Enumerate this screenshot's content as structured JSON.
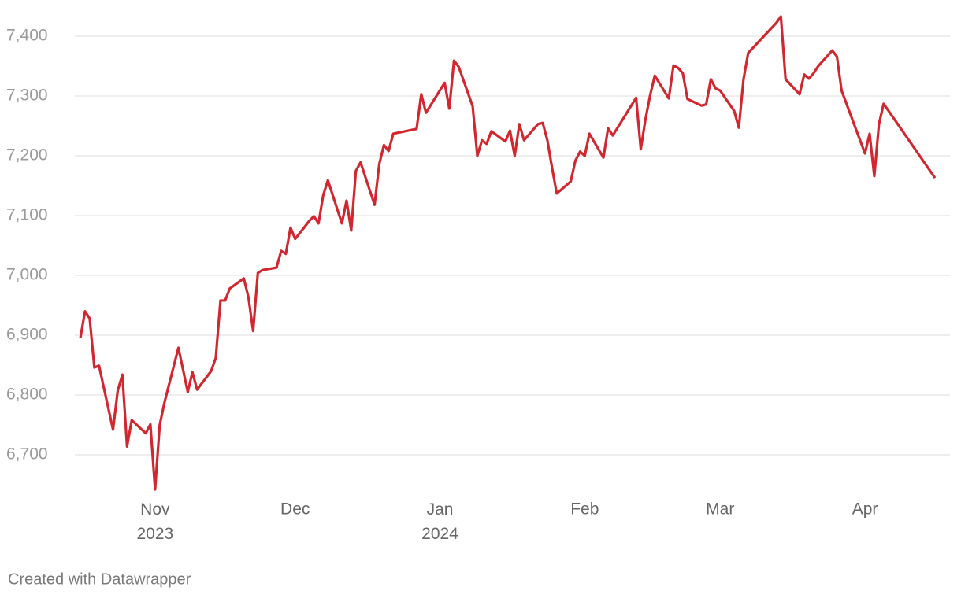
{
  "chart_data": {
    "type": "line",
    "x": [
      0,
      1,
      2,
      3,
      4,
      7,
      8,
      9,
      10,
      11,
      14,
      15,
      16,
      17,
      18,
      21,
      23,
      24,
      25,
      28,
      29,
      30,
      31,
      32,
      35,
      36,
      37,
      38,
      39,
      42,
      43,
      44,
      45,
      46,
      49,
      50,
      51,
      52,
      53,
      56,
      57,
      58,
      59,
      60,
      63,
      64,
      65,
      66,
      67,
      72,
      73,
      74,
      78,
      79,
      80,
      81,
      84,
      85,
      86,
      87,
      88,
      91,
      92,
      93,
      94,
      95,
      98,
      99,
      100,
      101,
      102,
      105,
      106,
      107,
      108,
      109,
      112,
      113,
      114,
      119,
      120,
      121,
      122,
      123,
      126,
      127,
      128,
      129,
      130,
      133,
      134,
      135,
      136,
      137,
      140,
      141,
      142,
      143,
      149,
      150,
      151,
      154,
      155,
      156,
      157,
      158,
      161,
      162,
      163,
      168,
      169,
      170,
      171,
      172,
      183
    ],
    "series": [
      {
        "color": "#d0282e",
        "values": [
          6895,
          6940,
          6928,
          6846,
          6849,
          6742,
          6807,
          6834,
          6714,
          6758,
          6736,
          6751,
          6642,
          6750,
          6787,
          6879,
          6805,
          6838,
          6809,
          6840,
          6862,
          6958,
          6958,
          6978,
          6995,
          6963,
          6907,
          7004,
          7009,
          7013,
          7041,
          7036,
          7080,
          7061,
          7091,
          7099,
          7087,
          7134,
          7159,
          7087,
          7125,
          7075,
          7175,
          7189,
          7118,
          7186,
          7218,
          7208,
          7237,
          7245,
          7303,
          7272,
          7322,
          7279,
          7359,
          7349,
          7283,
          7200,
          7226,
          7220,
          7241,
          7224,
          7242,
          7200,
          7253,
          7226,
          7253,
          7255,
          7226,
          7180,
          7137,
          7157,
          7192,
          7207,
          7200,
          7237,
          7197,
          7246,
          7234,
          7297,
          7211,
          7261,
          7301,
          7334,
          7296,
          7351,
          7347,
          7338,
          7295,
          7284,
          7286,
          7328,
          7313,
          7309,
          7275,
          7247,
          7328,
          7372,
          7422,
          7433,
          7328,
          7303,
          7336,
          7329,
          7338,
          7350,
          7376,
          7366,
          7309,
          7204,
          7237,
          7166,
          7253,
          7287,
          7163
        ]
      }
    ],
    "xlim": [
      0,
      183
    ],
    "xticks": [
      {
        "value": 16,
        "label": "Nov\n2023"
      },
      {
        "value": 46,
        "label": "Dec"
      },
      {
        "value": 77,
        "label": "Jan\n2024"
      },
      {
        "value": 108,
        "label": "Feb"
      },
      {
        "value": 137,
        "label": "Mar"
      },
      {
        "value": 168,
        "label": "Apr"
      }
    ],
    "ylim": [
      6640,
      7435
    ],
    "yticks": [
      {
        "value": 6700,
        "label": "6,700"
      },
      {
        "value": 6800,
        "label": "6,800"
      },
      {
        "value": 6900,
        "label": "6,900"
      },
      {
        "value": 7000,
        "label": "7,000"
      },
      {
        "value": 7100,
        "label": "7,100"
      },
      {
        "value": 7200,
        "label": "7,200"
      },
      {
        "value": 7300,
        "label": "7,300"
      },
      {
        "value": 7400,
        "label": "7,400"
      }
    ],
    "grid": true,
    "source": "Created with Datawrapper"
  }
}
